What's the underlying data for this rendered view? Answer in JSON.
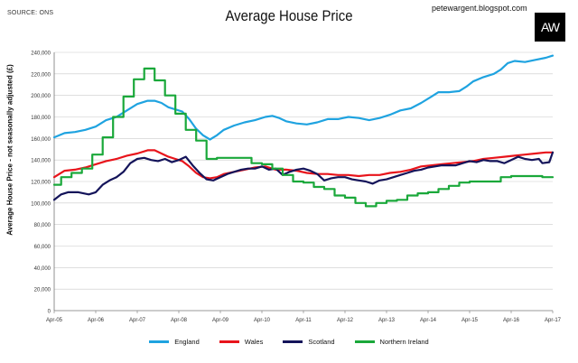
{
  "header": {
    "source": "SOURCE: ONS",
    "title": "Average House Price",
    "blog": "petewargent.blogspot.com",
    "logo": "AW"
  },
  "chart_data": {
    "type": "line",
    "title": "Average House Price",
    "ylabel": "Average House Price - not seasonally adjusted (£)",
    "xlabel": "",
    "ylim": [
      0,
      240000
    ],
    "yticks": [
      0,
      20000,
      40000,
      60000,
      80000,
      100000,
      120000,
      140000,
      160000,
      180000,
      200000,
      220000,
      240000
    ],
    "ytick_labels": [
      "0",
      "20,000",
      "40,000",
      "60,000",
      "80,000",
      "100,000",
      "120,000",
      "140,000",
      "160,000",
      "180,000",
      "200,000",
      "220,000",
      "240,000"
    ],
    "xlim": [
      0,
      144
    ],
    "xticks": [
      0,
      12,
      24,
      36,
      48,
      60,
      72,
      84,
      96,
      108,
      120,
      132,
      144
    ],
    "xtick_labels": [
      "Apr-05",
      "Apr-06",
      "Apr-07",
      "Apr-08",
      "Apr-09",
      "Apr-10",
      "Apr-11",
      "Apr-12",
      "Apr-13",
      "Apr-14",
      "Apr-15",
      "Apr-16",
      "Apr-17"
    ],
    "grid": true,
    "legend_position": "bottom",
    "series": [
      {
        "name": "England",
        "color": "#1fa3e0",
        "points": [
          [
            0,
            161000
          ],
          [
            3,
            165000
          ],
          [
            6,
            166000
          ],
          [
            9,
            168000
          ],
          [
            12,
            171000
          ],
          [
            15,
            177000
          ],
          [
            18,
            180000
          ],
          [
            21,
            186000
          ],
          [
            24,
            192000
          ],
          [
            27,
            195000
          ],
          [
            29,
            195000
          ],
          [
            31,
            193000
          ],
          [
            33,
            189000
          ],
          [
            35,
            187000
          ],
          [
            37,
            185000
          ],
          [
            39,
            178000
          ],
          [
            41,
            169000
          ],
          [
            43,
            163000
          ],
          [
            45,
            159000
          ],
          [
            47,
            163000
          ],
          [
            49,
            168000
          ],
          [
            52,
            172000
          ],
          [
            55,
            175000
          ],
          [
            58,
            177000
          ],
          [
            61,
            180000
          ],
          [
            63,
            181000
          ],
          [
            65,
            179000
          ],
          [
            67,
            176000
          ],
          [
            70,
            174000
          ],
          [
            73,
            173000
          ],
          [
            76,
            175000
          ],
          [
            79,
            178000
          ],
          [
            82,
            178000
          ],
          [
            85,
            180000
          ],
          [
            88,
            179000
          ],
          [
            91,
            177000
          ],
          [
            94,
            179000
          ],
          [
            97,
            182000
          ],
          [
            100,
            186000
          ],
          [
            103,
            188000
          ],
          [
            106,
            193000
          ],
          [
            109,
            199000
          ],
          [
            111,
            203000
          ],
          [
            114,
            203000
          ],
          [
            117,
            204000
          ],
          [
            119,
            208000
          ],
          [
            121,
            213000
          ],
          [
            124,
            217000
          ],
          [
            127,
            220000
          ],
          [
            129,
            224000
          ],
          [
            131,
            230000
          ],
          [
            133,
            232000
          ],
          [
            136,
            231000
          ],
          [
            139,
            233000
          ],
          [
            142,
            235000
          ],
          [
            144,
            237000
          ]
        ]
      },
      {
        "name": "Wales",
        "color": "#e8141b",
        "points": [
          [
            0,
            124000
          ],
          [
            3,
            130000
          ],
          [
            6,
            131000
          ],
          [
            9,
            133000
          ],
          [
            12,
            136000
          ],
          [
            15,
            139000
          ],
          [
            18,
            141000
          ],
          [
            21,
            144000
          ],
          [
            24,
            146000
          ],
          [
            27,
            149000
          ],
          [
            29,
            149000
          ],
          [
            31,
            146000
          ],
          [
            33,
            143000
          ],
          [
            35,
            141000
          ],
          [
            37,
            139000
          ],
          [
            39,
            134000
          ],
          [
            41,
            128000
          ],
          [
            43,
            124000
          ],
          [
            45,
            123000
          ],
          [
            47,
            124000
          ],
          [
            49,
            127000
          ],
          [
            52,
            129000
          ],
          [
            55,
            131000
          ],
          [
            58,
            133000
          ],
          [
            61,
            134000
          ],
          [
            64,
            131000
          ],
          [
            67,
            131000
          ],
          [
            70,
            130000
          ],
          [
            73,
            128000
          ],
          [
            76,
            127000
          ],
          [
            79,
            127000
          ],
          [
            82,
            126000
          ],
          [
            85,
            126000
          ],
          [
            88,
            125000
          ],
          [
            91,
            126000
          ],
          [
            94,
            126000
          ],
          [
            97,
            128000
          ],
          [
            100,
            129000
          ],
          [
            103,
            131000
          ],
          [
            106,
            134000
          ],
          [
            109,
            135000
          ],
          [
            112,
            136000
          ],
          [
            115,
            137000
          ],
          [
            118,
            138000
          ],
          [
            121,
            139000
          ],
          [
            124,
            141000
          ],
          [
            127,
            142000
          ],
          [
            130,
            143000
          ],
          [
            133,
            144000
          ],
          [
            136,
            145000
          ],
          [
            139,
            146000
          ],
          [
            142,
            147000
          ],
          [
            144,
            147000
          ]
        ]
      },
      {
        "name": "Scotland",
        "color": "#14145a",
        "points": [
          [
            0,
            103000
          ],
          [
            2,
            108000
          ],
          [
            4,
            110000
          ],
          [
            7,
            110000
          ],
          [
            10,
            108000
          ],
          [
            12,
            110000
          ],
          [
            14,
            117000
          ],
          [
            16,
            121000
          ],
          [
            18,
            124000
          ],
          [
            20,
            129000
          ],
          [
            22,
            137000
          ],
          [
            24,
            141000
          ],
          [
            26,
            142000
          ],
          [
            28,
            140000
          ],
          [
            30,
            139000
          ],
          [
            32,
            141000
          ],
          [
            34,
            138000
          ],
          [
            36,
            140000
          ],
          [
            38,
            143000
          ],
          [
            40,
            135000
          ],
          [
            42,
            128000
          ],
          [
            44,
            122000
          ],
          [
            46,
            121000
          ],
          [
            48,
            124000
          ],
          [
            50,
            127000
          ],
          [
            52,
            129000
          ],
          [
            54,
            131000
          ],
          [
            56,
            132000
          ],
          [
            58,
            132000
          ],
          [
            60,
            134000
          ],
          [
            62,
            131000
          ],
          [
            64,
            132000
          ],
          [
            66,
            126000
          ],
          [
            68,
            129000
          ],
          [
            70,
            131000
          ],
          [
            72,
            132000
          ],
          [
            74,
            130000
          ],
          [
            76,
            127000
          ],
          [
            78,
            121000
          ],
          [
            80,
            123000
          ],
          [
            82,
            124000
          ],
          [
            84,
            124000
          ],
          [
            86,
            122000
          ],
          [
            88,
            121000
          ],
          [
            90,
            120000
          ],
          [
            92,
            118000
          ],
          [
            94,
            121000
          ],
          [
            96,
            122000
          ],
          [
            98,
            124000
          ],
          [
            100,
            126000
          ],
          [
            102,
            128000
          ],
          [
            104,
            130000
          ],
          [
            106,
            131000
          ],
          [
            108,
            133000
          ],
          [
            110,
            134000
          ],
          [
            112,
            135000
          ],
          [
            114,
            135000
          ],
          [
            116,
            135000
          ],
          [
            118,
            137000
          ],
          [
            120,
            139000
          ],
          [
            122,
            138000
          ],
          [
            124,
            140000
          ],
          [
            126,
            139000
          ],
          [
            128,
            139000
          ],
          [
            130,
            137000
          ],
          [
            132,
            140000
          ],
          [
            134,
            143000
          ],
          [
            136,
            141000
          ],
          [
            138,
            140000
          ],
          [
            140,
            141000
          ],
          [
            141,
            137000
          ],
          [
            143,
            138000
          ],
          [
            144,
            147000
          ]
        ]
      },
      {
        "name": "Northern Ireland",
        "color": "#1aa83a",
        "points": [
          [
            0,
            117000
          ],
          [
            2,
            117000
          ],
          [
            2,
            124000
          ],
          [
            5,
            124000
          ],
          [
            5,
            128000
          ],
          [
            8,
            128000
          ],
          [
            8,
            132000
          ],
          [
            11,
            132000
          ],
          [
            11,
            145000
          ],
          [
            14,
            145000
          ],
          [
            14,
            161000
          ],
          [
            17,
            161000
          ],
          [
            17,
            180000
          ],
          [
            20,
            180000
          ],
          [
            20,
            199000
          ],
          [
            23,
            199000
          ],
          [
            23,
            215000
          ],
          [
            26,
            215000
          ],
          [
            26,
            225000
          ],
          [
            29,
            225000
          ],
          [
            29,
            214000
          ],
          [
            32,
            214000
          ],
          [
            32,
            200000
          ],
          [
            35,
            200000
          ],
          [
            35,
            183000
          ],
          [
            38,
            183000
          ],
          [
            38,
            168000
          ],
          [
            41,
            168000
          ],
          [
            41,
            158000
          ],
          [
            44,
            158000
          ],
          [
            44,
            141000
          ],
          [
            47,
            141000
          ],
          [
            47,
            142000
          ],
          [
            57,
            142000
          ],
          [
            57,
            137000
          ],
          [
            60,
            137000
          ],
          [
            60,
            136000
          ],
          [
            63,
            136000
          ],
          [
            63,
            132000
          ],
          [
            66,
            132000
          ],
          [
            66,
            126000
          ],
          [
            69,
            126000
          ],
          [
            69,
            120000
          ],
          [
            72,
            120000
          ],
          [
            72,
            119000
          ],
          [
            75,
            119000
          ],
          [
            75,
            115000
          ],
          [
            78,
            115000
          ],
          [
            78,
            113000
          ],
          [
            81,
            113000
          ],
          [
            81,
            107000
          ],
          [
            84,
            107000
          ],
          [
            84,
            105000
          ],
          [
            87,
            105000
          ],
          [
            87,
            100000
          ],
          [
            90,
            100000
          ],
          [
            90,
            97000
          ],
          [
            93,
            97000
          ],
          [
            93,
            100000
          ],
          [
            96,
            100000
          ],
          [
            96,
            102000
          ],
          [
            99,
            102000
          ],
          [
            99,
            103000
          ],
          [
            102,
            103000
          ],
          [
            102,
            107000
          ],
          [
            105,
            107000
          ],
          [
            105,
            109000
          ],
          [
            108,
            109000
          ],
          [
            108,
            110000
          ],
          [
            111,
            110000
          ],
          [
            111,
            113000
          ],
          [
            114,
            113000
          ],
          [
            114,
            116000
          ],
          [
            117,
            116000
          ],
          [
            117,
            119000
          ],
          [
            120,
            119000
          ],
          [
            120,
            120000
          ],
          [
            129,
            120000
          ],
          [
            129,
            124000
          ],
          [
            132,
            124000
          ],
          [
            132,
            125000
          ],
          [
            141,
            125000
          ],
          [
            141,
            124000
          ],
          [
            144,
            124000
          ]
        ]
      }
    ]
  }
}
